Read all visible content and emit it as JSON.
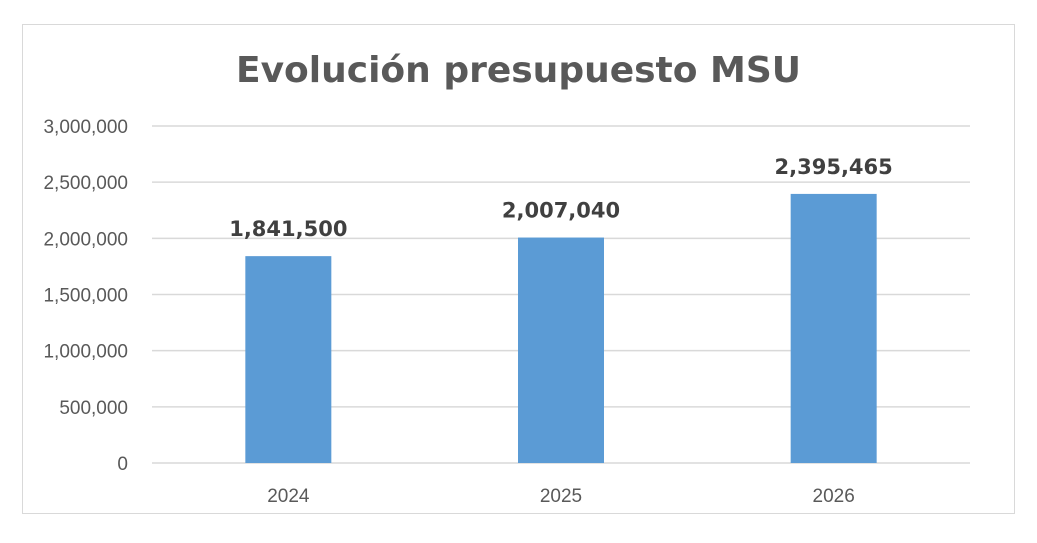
{
  "chart_data": {
    "type": "bar",
    "title": "Evolución presupuesto MSU",
    "categories": [
      "2024",
      "2025",
      "2026"
    ],
    "values": [
      1841500,
      2007040,
      2395465
    ],
    "data_labels": [
      "1,841,500",
      "2,007,040",
      "2,395,465"
    ],
    "ylim": [
      0,
      3000000
    ],
    "yticks": [
      0,
      500000,
      1000000,
      1500000,
      2000000,
      2500000,
      3000000
    ],
    "ytick_labels": [
      "0",
      "500,000",
      "1,000,000",
      "1,500,000",
      "2,000,000",
      "2,500,000",
      "3,000,000"
    ],
    "xlabel": "",
    "ylabel": "",
    "grid": true,
    "legend": "none",
    "colors": {
      "bar": "#5b9bd5",
      "grid": "#d9d9d9",
      "text": "#595959",
      "label": "#404040"
    }
  }
}
